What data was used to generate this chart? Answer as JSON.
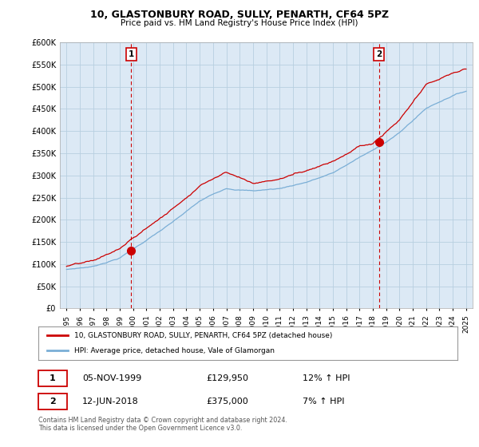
{
  "title": "10, GLASTONBURY ROAD, SULLY, PENARTH, CF64 5PZ",
  "subtitle": "Price paid vs. HM Land Registry's House Price Index (HPI)",
  "legend_line1": "10, GLASTONBURY ROAD, SULLY, PENARTH, CF64 5PZ (detached house)",
  "legend_line2": "HPI: Average price, detached house, Vale of Glamorgan",
  "footnote": "Contains HM Land Registry data © Crown copyright and database right 2024.\nThis data is licensed under the Open Government Licence v3.0.",
  "sale1_date": "05-NOV-1999",
  "sale1_price": "£129,950",
  "sale1_hpi": "12% ↑ HPI",
  "sale2_date": "12-JUN-2018",
  "sale2_price": "£375,000",
  "sale2_hpi": "7% ↑ HPI",
  "sale1_x": 1999.85,
  "sale1_y": 129950,
  "sale2_x": 2018.45,
  "sale2_y": 375000,
  "hpi_color": "#7aaed6",
  "price_color": "#cc0000",
  "chart_bg": "#dce9f5",
  "background_color": "#ffffff",
  "grid_color": "#b8cfe0",
  "ylim": [
    0,
    600000
  ],
  "xlim": [
    1994.5,
    2025.5
  ],
  "yticks": [
    0,
    50000,
    100000,
    150000,
    200000,
    250000,
    300000,
    350000,
    400000,
    450000,
    500000,
    550000,
    600000
  ],
  "xtick_years": [
    1995,
    1996,
    1997,
    1998,
    1999,
    2000,
    2001,
    2002,
    2003,
    2004,
    2005,
    2006,
    2007,
    2008,
    2009,
    2010,
    2011,
    2012,
    2013,
    2014,
    2015,
    2016,
    2017,
    2018,
    2019,
    2020,
    2021,
    2022,
    2023,
    2024,
    2025
  ],
  "hpi_anchors_x": [
    1995,
    1997,
    1999,
    2001,
    2003,
    2005,
    2007,
    2009,
    2011,
    2013,
    2015,
    2017,
    2018,
    2020,
    2022,
    2024,
    2025
  ],
  "hpi_anchors_y": [
    88000,
    95000,
    115000,
    155000,
    195000,
    240000,
    270000,
    265000,
    270000,
    285000,
    305000,
    340000,
    355000,
    395000,
    450000,
    480000,
    490000
  ],
  "price_anchors_x": [
    1995,
    1997,
    1999,
    2001,
    2003,
    2005,
    2007,
    2009,
    2011,
    2013,
    2015,
    2017,
    2018,
    2020,
    2022,
    2024,
    2025
  ],
  "price_anchors_y": [
    95000,
    103000,
    130000,
    175000,
    220000,
    275000,
    310000,
    285000,
    295000,
    315000,
    340000,
    375000,
    380000,
    430000,
    505000,
    530000,
    540000
  ]
}
